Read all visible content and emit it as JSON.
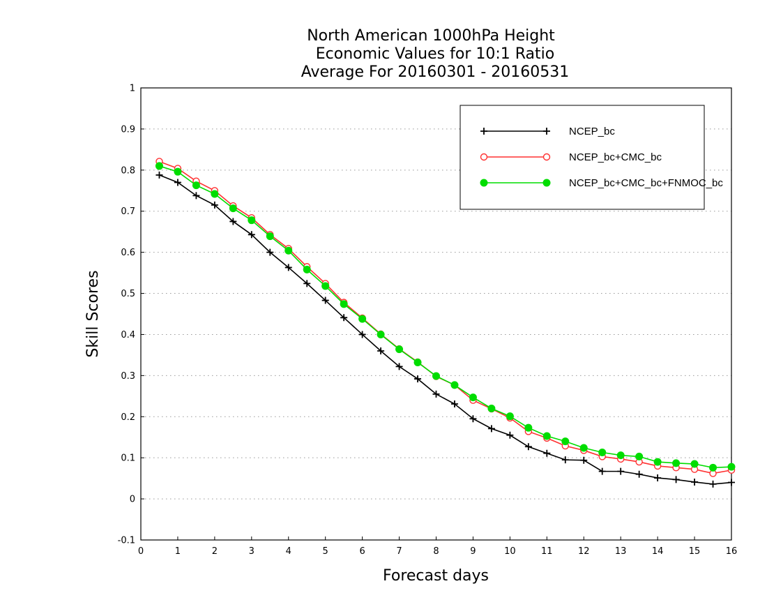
{
  "chart_data": {
    "type": "line",
    "title_lines": [
      "North American 1000hPa Height",
      "Economic Values for 10:1 Ratio",
      "Average For 20160301 - 20160531"
    ],
    "xlabel": "Forecast days",
    "ylabel": "Skill Scores",
    "xlim": [
      0,
      16
    ],
    "ylim": [
      -0.1,
      1
    ],
    "xticks": [
      0,
      1,
      2,
      3,
      4,
      5,
      6,
      7,
      8,
      9,
      10,
      11,
      12,
      13,
      14,
      15,
      16
    ],
    "yticks": [
      -0.1,
      0,
      0.1,
      0.2,
      0.3,
      0.4,
      0.5,
      0.6,
      0.7,
      0.8,
      0.9,
      1
    ],
    "ytick_labels": [
      "-0.1",
      "0",
      "0.1",
      "0.2",
      "0.3",
      "0.4",
      "0.5",
      "0.6",
      "0.7",
      "0.8",
      "0.9",
      "1"
    ],
    "grid": "horizontal-dotted",
    "legend_position": "top-right",
    "x": [
      0.5,
      1,
      1.5,
      2,
      2.5,
      3,
      3.5,
      4,
      4.5,
      5,
      5.5,
      6,
      6.5,
      7,
      7.5,
      8,
      8.5,
      9,
      9.5,
      10,
      10.5,
      11,
      11.5,
      12,
      12.5,
      13,
      13.5,
      14,
      14.5,
      15,
      15.5,
      16
    ],
    "series": [
      {
        "name": "NCEP_bc",
        "color": "#000000",
        "marker": "plus",
        "values": [
          0.788,
          0.77,
          0.738,
          0.715,
          0.675,
          0.643,
          0.6,
          0.563,
          0.524,
          0.483,
          0.441,
          0.4,
          0.36,
          0.322,
          0.292,
          0.255,
          0.231,
          0.195,
          0.171,
          0.155,
          0.127,
          0.111,
          0.095,
          0.094,
          0.067,
          0.067,
          0.06,
          0.051,
          0.047,
          0.041,
          0.036,
          0.04
        ]
      },
      {
        "name": "NCEP_bc+CMC_bc",
        "color": "#ff3030",
        "marker": "open-circle",
        "values": [
          0.821,
          0.804,
          0.773,
          0.75,
          0.713,
          0.684,
          0.643,
          0.609,
          0.565,
          0.524,
          0.478,
          0.44,
          0.401,
          0.365,
          0.333,
          0.298,
          0.277,
          0.24,
          0.219,
          0.197,
          0.164,
          0.148,
          0.129,
          0.118,
          0.103,
          0.097,
          0.09,
          0.08,
          0.076,
          0.072,
          0.062,
          0.07
        ]
      },
      {
        "name": "NCEP_bc+CMC_bc+FNMOC_bc",
        "color": "#00dd00",
        "marker": "filled-circle",
        "values": [
          0.81,
          0.796,
          0.763,
          0.742,
          0.707,
          0.678,
          0.639,
          0.604,
          0.558,
          0.518,
          0.474,
          0.438,
          0.4,
          0.364,
          0.332,
          0.299,
          0.277,
          0.247,
          0.22,
          0.201,
          0.173,
          0.153,
          0.14,
          0.124,
          0.113,
          0.106,
          0.103,
          0.09,
          0.087,
          0.085,
          0.076,
          0.078
        ]
      }
    ]
  }
}
